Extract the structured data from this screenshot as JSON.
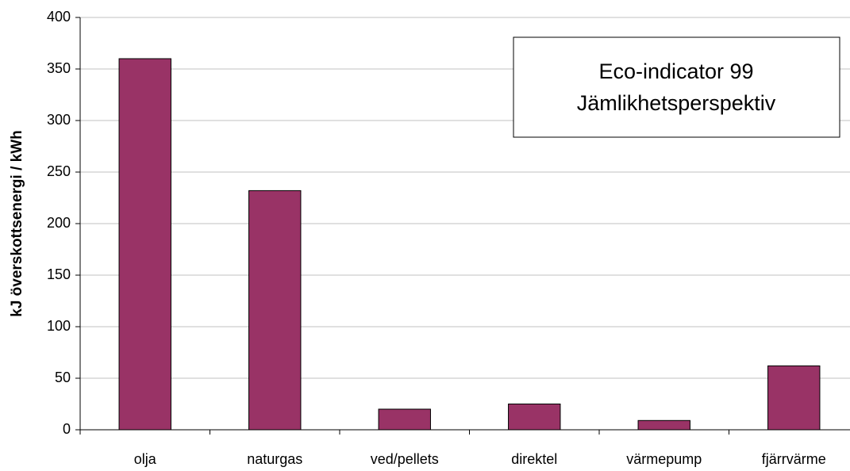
{
  "chart_data": {
    "type": "bar",
    "y_label": "kJ överskottsenergi / kWh",
    "annotation": [
      "Eco-indicator 99",
      "Jämlikhetsperspektiv"
    ],
    "categories": [
      "olja",
      "naturgas",
      "ved/pellets",
      "direktel",
      "värmepump",
      "fjärrvärme"
    ],
    "values": [
      360,
      232,
      20,
      25,
      9,
      62
    ],
    "color": "#993366",
    "ylim": [
      0,
      400
    ],
    "yticks": [
      0,
      50,
      100,
      150,
      200,
      250,
      300,
      350,
      400
    ],
    "grid": true
  }
}
